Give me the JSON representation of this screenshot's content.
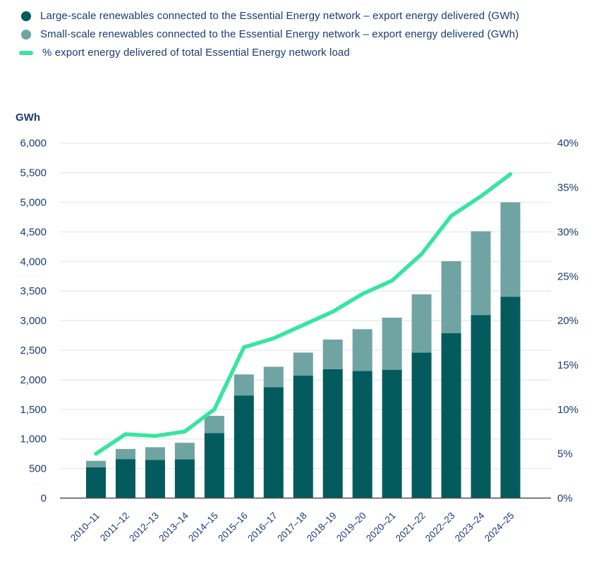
{
  "legend": [
    {
      "label": "Large-scale renewables connected to the Essential Energy network – export energy delivered (GWh)",
      "marker": "circle",
      "color": "#035b5d"
    },
    {
      "label": "Small-scale renewables connected to the Essential Energy network – export energy delivered (GWh)",
      "marker": "circle",
      "color": "#70a4a3"
    },
    {
      "label": "% export energy delivered of total Essential Energy network load",
      "marker": "line",
      "color": "#36e69e"
    }
  ],
  "chart_data": {
    "type": "bar",
    "subtype": "stacked-bar-with-line",
    "title": "",
    "categories": [
      "2010–11",
      "2011–12",
      "2012–13",
      "2013–14",
      "2014–15",
      "2015–16",
      "2016–17",
      "2017–18",
      "2018–19",
      "2019–20",
      "2020–21",
      "2021–22",
      "2022–23",
      "2023–24",
      "2024–25"
    ],
    "series": [
      {
        "name": "Large-scale renewables connected to the Essential Energy network – export energy delivered (GWh)",
        "type": "bar",
        "stack": "total",
        "yaxis": "left",
        "color": "#035b5d",
        "values": [
          520,
          660,
          645,
          655,
          1100,
          1735,
          1875,
          2070,
          2180,
          2150,
          2170,
          2460,
          2790,
          3095,
          3405
        ]
      },
      {
        "name": "Small-scale renewables connected to the Essential Energy network – export energy delivered (GWh)",
        "type": "bar",
        "stack": "total",
        "yaxis": "left",
        "color": "#70a4a3",
        "values": [
          110,
          170,
          215,
          280,
          290,
          355,
          345,
          390,
          500,
          705,
          880,
          985,
          1215,
          1415,
          1595
        ]
      },
      {
        "name": "% export energy delivered of total Essential Energy network load",
        "type": "line",
        "yaxis": "right",
        "color": "#36e69e",
        "values": [
          5.0,
          7.2,
          7.0,
          7.5,
          10.0,
          17.0,
          18.0,
          19.5,
          21.0,
          23.0,
          24.5,
          27.5,
          31.8,
          34.0,
          36.5
        ]
      }
    ],
    "left_axis": {
      "title": "GWh",
      "min": 0,
      "max": 6000,
      "step": 500,
      "tick_labels": [
        "0",
        "500",
        "1,000",
        "1,500",
        "2,000",
        "2,500",
        "3,000",
        "3,500",
        "4,000",
        "4,500",
        "5,000",
        "5,500",
        "6,000"
      ]
    },
    "right_axis": {
      "title": "",
      "min": 0,
      "max": 40,
      "step": 5,
      "suffix": "%",
      "tick_labels": [
        "0%",
        "5%",
        "10%",
        "15%",
        "20%",
        "25%",
        "30%",
        "35%",
        "40%"
      ]
    },
    "grid": true,
    "legend_position": "top-left",
    "colors": {
      "grid": "#e9edee",
      "axis_line": "#4f4f4f",
      "text": "#1b3c74"
    }
  }
}
